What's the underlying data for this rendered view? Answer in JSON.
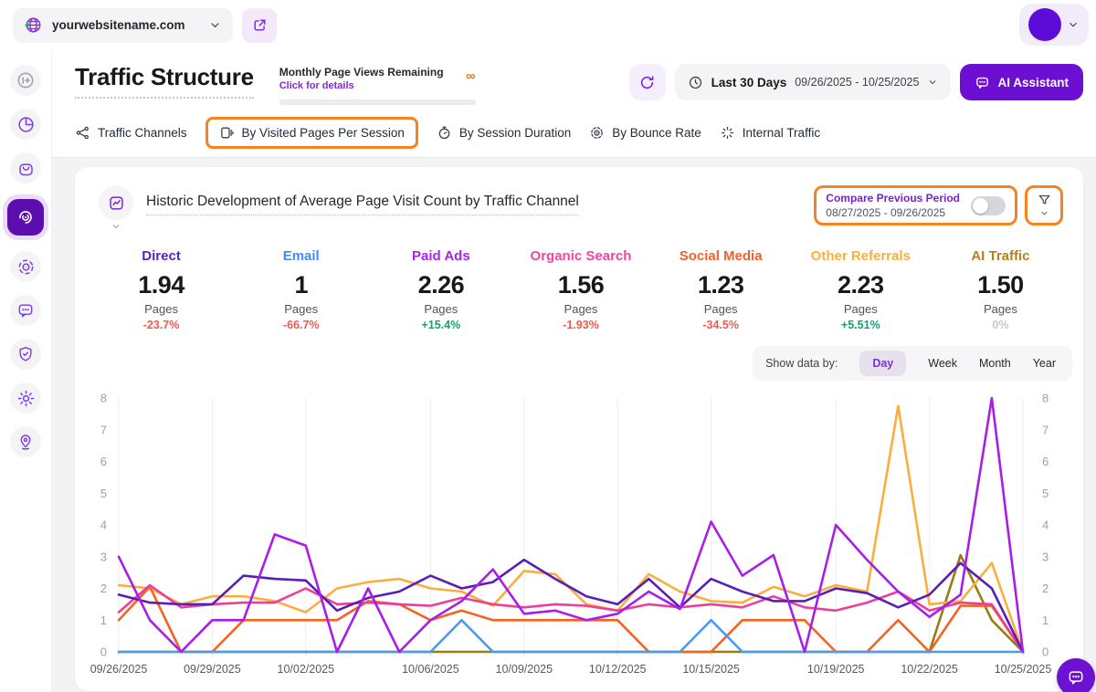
{
  "topbar": {
    "website": "yourwebsitename.com"
  },
  "sidebar": {
    "items": [
      "expand",
      "analytics-pie",
      "orders-bag",
      "traffic-spiral",
      "focus-scan",
      "chat",
      "security-shield",
      "settings-gear",
      "location-pin"
    ],
    "active": "traffic-spiral"
  },
  "header": {
    "title": "Traffic Structure",
    "monthly": {
      "title": "Monthly Page Views Remaining",
      "link": "Click for details",
      "infinity": "∞"
    },
    "date_filter": {
      "label": "Last 30 Days",
      "range": "09/26/2025 - 10/25/2025"
    },
    "ai_assistant": "AI Assistant"
  },
  "tabs": [
    {
      "label": "Traffic Channels",
      "active": false
    },
    {
      "label": "By Visited Pages Per Session",
      "active": true
    },
    {
      "label": "By Session Duration",
      "active": false
    },
    {
      "label": "By Bounce Rate",
      "active": false
    },
    {
      "label": "Internal Traffic",
      "active": false
    }
  ],
  "card": {
    "title": "Historic Development of Average Page Visit Count by Traffic Channel",
    "compare": {
      "label": "Compare Previous Period",
      "range": "08/27/2025 - 09/26/2025",
      "enabled": false
    },
    "show_data_by": {
      "label": "Show data by:",
      "options": [
        "Day",
        "Week",
        "Month",
        "Year"
      ],
      "selected": "Day"
    }
  },
  "channels": [
    {
      "id": "direct",
      "name": "Direct",
      "value": "1.94",
      "unit": "Pages",
      "change": "-23.7%",
      "trend": "down",
      "color": "#5b1fc4"
    },
    {
      "id": "email",
      "name": "Email",
      "value": "1",
      "unit": "Pages",
      "change": "-66.7%",
      "trend": "down",
      "color": "#3f8ef5"
    },
    {
      "id": "paid-ads",
      "name": "Paid Ads",
      "value": "2.26",
      "unit": "Pages",
      "change": "+15.4%",
      "trend": "up",
      "color": "#a824ea"
    },
    {
      "id": "organic-search",
      "name": "Organic Search",
      "value": "1.56",
      "unit": "Pages",
      "change": "-1.93%",
      "trend": "down",
      "color": "#f2479e"
    },
    {
      "id": "social-media",
      "name": "Social Media",
      "value": "1.23",
      "unit": "Pages",
      "change": "-34.5%",
      "trend": "down",
      "color": "#f2622e"
    },
    {
      "id": "other-referrals",
      "name": "Other Referrals",
      "value": "2.23",
      "unit": "Pages",
      "change": "+5.51%",
      "trend": "up",
      "color": "#fbb03c"
    },
    {
      "id": "ai-traffic",
      "name": "AI Traffic",
      "value": "1.50",
      "unit": "Pages",
      "change": "0%",
      "trend": "flat",
      "color": "#b5811c"
    }
  ],
  "chart_data": {
    "type": "line",
    "title": "Historic Development of Average Page Visit Count by Traffic Channel",
    "ylim": [
      0,
      8
    ],
    "y_ticks": [
      0,
      1,
      2,
      3,
      4,
      5,
      6,
      7,
      8
    ],
    "grid": "vertical",
    "x": [
      "09/26/2025",
      "09/27/2025",
      "09/28/2025",
      "09/29/2025",
      "09/30/2025",
      "10/01/2025",
      "10/02/2025",
      "10/03/2025",
      "10/04/2025",
      "10/05/2025",
      "10/06/2025",
      "10/07/2025",
      "10/08/2025",
      "10/09/2025",
      "10/10/2025",
      "10/11/2025",
      "10/12/2025",
      "10/13/2025",
      "10/14/2025",
      "10/15/2025",
      "10/16/2025",
      "10/17/2025",
      "10/18/2025",
      "10/19/2025",
      "10/20/2025",
      "10/21/2025",
      "10/22/2025",
      "10/23/2025",
      "10/24/2025",
      "10/25/2025"
    ],
    "x_tick_labels": [
      {
        "day": 0,
        "label": "09/26/2025"
      },
      {
        "day": 3,
        "label": "09/29/2025"
      },
      {
        "day": 6,
        "label": "10/02/2025"
      },
      {
        "day": 10,
        "label": "10/06/2025"
      },
      {
        "day": 13,
        "label": "10/09/2025"
      },
      {
        "day": 16,
        "label": "10/12/2025"
      },
      {
        "day": 19,
        "label": "10/15/2025"
      },
      {
        "day": 23,
        "label": "10/19/2025"
      },
      {
        "day": 26,
        "label": "10/22/2025"
      },
      {
        "day": 29,
        "label": "10/25/2025"
      }
    ],
    "series": [
      {
        "id": "ai-traffic",
        "name": "AI Traffic",
        "color": "#9c7a12",
        "values": [
          0,
          0,
          0,
          0,
          0,
          0,
          0,
          0,
          0,
          0,
          0,
          0,
          0,
          0,
          0,
          0,
          0,
          0,
          0,
          0,
          0,
          0,
          0,
          0,
          0,
          0,
          0,
          3.05,
          1.0,
          0
        ]
      },
      {
        "id": "other-referrals",
        "name": "Other Referrals",
        "color": "#fbae3e",
        "values": [
          2.1,
          2.0,
          1.5,
          1.75,
          1.75,
          1.6,
          1.25,
          2.0,
          2.2,
          2.3,
          2.0,
          1.9,
          1.45,
          2.55,
          2.45,
          1.5,
          1.3,
          2.45,
          1.9,
          1.6,
          1.55,
          2.05,
          1.75,
          2.1,
          1.9,
          7.75,
          1.5,
          1.6,
          2.8,
          0
        ]
      },
      {
        "id": "social-media",
        "name": "Social Media",
        "color": "#f4641f",
        "values": [
          1.0,
          2.05,
          0,
          0,
          1.0,
          1.0,
          1.0,
          1.0,
          1.6,
          1.5,
          1.0,
          1.3,
          1.0,
          1.0,
          1.0,
          1.0,
          1.0,
          0,
          0,
          0,
          1.0,
          1.0,
          1.0,
          0,
          0,
          1.0,
          0,
          1.45,
          1.45,
          0
        ]
      },
      {
        "id": "organic-search",
        "name": "Organic Search",
        "color": "#ea3f9b",
        "values": [
          1.25,
          2.1,
          1.4,
          1.5,
          1.55,
          1.55,
          2.0,
          1.5,
          1.55,
          1.5,
          1.45,
          1.7,
          1.5,
          1.4,
          1.5,
          1.45,
          1.3,
          1.5,
          1.4,
          1.5,
          1.4,
          1.75,
          1.4,
          1.3,
          1.55,
          1.9,
          1.3,
          1.55,
          1.5,
          0
        ]
      },
      {
        "id": "direct",
        "name": "Direct",
        "color": "#5a1eb8",
        "values": [
          1.8,
          1.55,
          1.5,
          1.5,
          2.4,
          2.3,
          2.25,
          1.3,
          1.7,
          1.9,
          2.4,
          2.0,
          2.2,
          2.9,
          2.3,
          1.75,
          1.5,
          2.3,
          1.4,
          2.3,
          1.9,
          1.6,
          1.6,
          2.0,
          1.85,
          1.4,
          1.8,
          2.8,
          2.0,
          0
        ]
      },
      {
        "id": "email",
        "name": "Email",
        "color": "#4a9af5",
        "values": [
          0,
          0,
          0,
          0,
          0,
          0,
          0,
          0,
          0,
          0,
          0,
          1,
          0,
          0,
          0,
          0,
          0,
          0,
          0,
          1,
          0,
          0,
          0,
          0,
          0,
          0,
          0,
          0,
          0,
          0
        ]
      },
      {
        "id": "paid-ads",
        "name": "Paid Ads",
        "color": "#a81ee8",
        "values": [
          3.0,
          1.0,
          0,
          1.0,
          1.0,
          3.7,
          3.35,
          0,
          2.0,
          0,
          1.0,
          1.6,
          2.6,
          1.2,
          1.3,
          1.0,
          1.2,
          1.9,
          1.35,
          4.1,
          2.4,
          3.05,
          0,
          4.0,
          2.9,
          1.9,
          1.1,
          1.8,
          8.0,
          0
        ]
      }
    ]
  }
}
